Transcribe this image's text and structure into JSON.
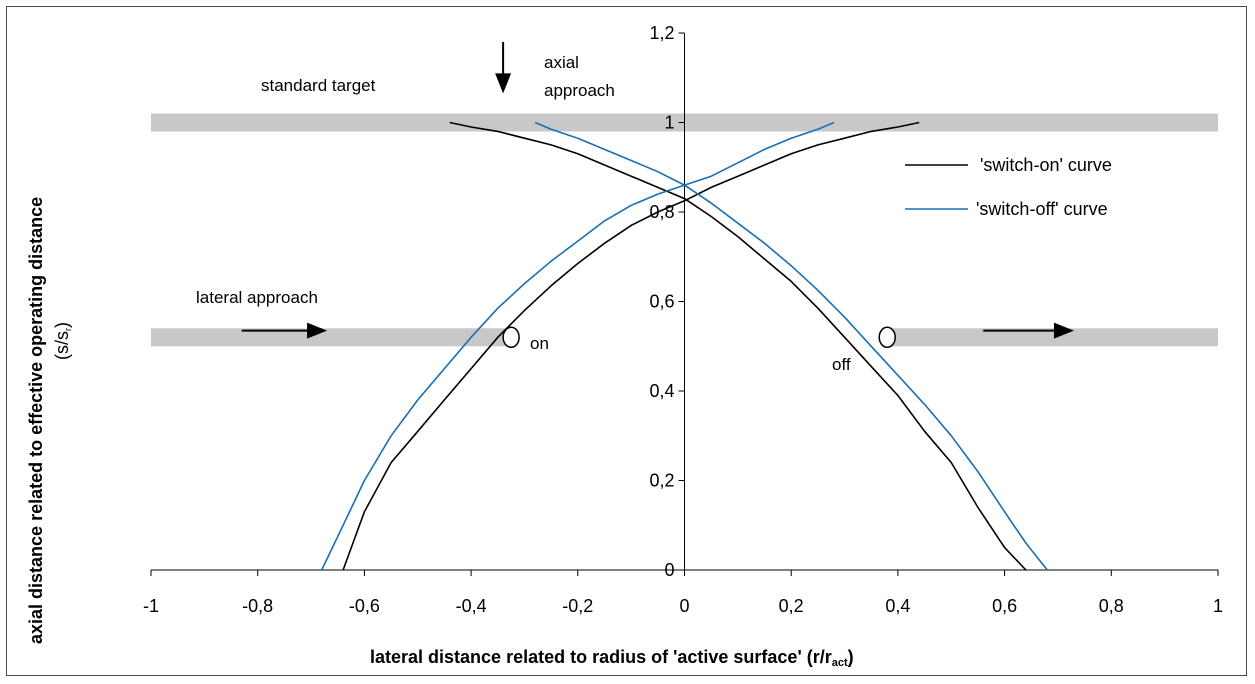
{
  "chart_data": {
    "type": "line",
    "xlabel_main": "lateral distance related to radius of 'active surface' (r/r",
    "xlabel_sub": "act",
    "xlabel_end": ")",
    "ylabel": "axial distance related to effective operating distance",
    "ylabel_units": "(s/s",
    "ylabel_units_sub": "r",
    "ylabel_units_end": ")",
    "xlim": [
      -1,
      1
    ],
    "ylim": [
      0,
      1.2
    ],
    "x_ticks": [
      -1,
      -0.8,
      -0.6,
      -0.4,
      -0.2,
      0,
      0.2,
      0.4,
      0.6,
      0.8,
      1
    ],
    "x_tick_labels": [
      "-1",
      "-0,8",
      "-0,6",
      "-0,4",
      "-0,2",
      "0",
      "0,2",
      "0,4",
      "0,6",
      "0,8",
      "1"
    ],
    "y_ticks": [
      0,
      0.2,
      0.4,
      0.6,
      0.8,
      1.0,
      1.2
    ],
    "y_tick_labels": [
      "0",
      "0,2",
      "0,4",
      "0,6",
      "0,8",
      "1",
      "1,2"
    ],
    "legend_position": "right",
    "series": [
      {
        "name": "'switch-on' curve",
        "color": "#000000",
        "segments": [
          {
            "x": [
              -0.64,
              -0.6,
              -0.55,
              -0.5,
              -0.45,
              -0.4,
              -0.35,
              -0.3,
              -0.25,
              -0.2,
              -0.15,
              -0.1,
              -0.05,
              0,
              0.05,
              0.1,
              0.15,
              0.2,
              0.25,
              0.3,
              0.35,
              0.4,
              0.44
            ],
            "y": [
              0,
              0.13,
              0.24,
              0.31,
              0.38,
              0.45,
              0.52,
              0.58,
              0.635,
              0.685,
              0.73,
              0.77,
              0.8,
              0.825,
              0.855,
              0.88,
              0.905,
              0.93,
              0.95,
              0.965,
              0.98,
              0.99,
              1.0
            ]
          },
          {
            "x": [
              -0.44,
              -0.4,
              -0.35,
              -0.3,
              -0.25,
              -0.2,
              -0.15,
              -0.1,
              -0.05,
              0,
              0.05,
              0.1,
              0.15,
              0.2,
              0.25,
              0.3,
              0.35,
              0.4,
              0.45,
              0.5,
              0.55,
              0.6,
              0.64
            ],
            "y": [
              1.0,
              0.99,
              0.98,
              0.965,
              0.95,
              0.93,
              0.905,
              0.88,
              0.855,
              0.83,
              0.79,
              0.745,
              0.695,
              0.645,
              0.585,
              0.52,
              0.455,
              0.39,
              0.31,
              0.24,
              0.14,
              0.05,
              0
            ]
          }
        ]
      },
      {
        "name": "'switch-off' curve",
        "color": "#1a6eb4",
        "segments": [
          {
            "x": [
              -0.68,
              -0.64,
              -0.6,
              -0.55,
              -0.5,
              -0.45,
              -0.4,
              -0.35,
              -0.3,
              -0.25,
              -0.2,
              -0.15,
              -0.1,
              -0.05,
              0,
              0.05,
              0.1,
              0.15,
              0.2,
              0.25,
              0.28
            ],
            "y": [
              0,
              0.1,
              0.2,
              0.3,
              0.38,
              0.45,
              0.52,
              0.585,
              0.64,
              0.69,
              0.735,
              0.78,
              0.815,
              0.84,
              0.86,
              0.88,
              0.91,
              0.94,
              0.965,
              0.985,
              1.0
            ]
          },
          {
            "x": [
              -0.28,
              -0.25,
              -0.2,
              -0.15,
              -0.1,
              -0.05,
              0,
              0.05,
              0.1,
              0.15,
              0.2,
              0.25,
              0.3,
              0.35,
              0.4,
              0.45,
              0.5,
              0.55,
              0.6,
              0.64,
              0.68
            ],
            "y": [
              1.0,
              0.985,
              0.965,
              0.94,
              0.915,
              0.89,
              0.86,
              0.82,
              0.775,
              0.73,
              0.68,
              0.625,
              0.565,
              0.5,
              0.435,
              0.37,
              0.3,
              0.22,
              0.13,
              0.06,
              0
            ]
          }
        ]
      }
    ],
    "bands": [
      {
        "x0": -1.0,
        "x1": 1.0,
        "y_center": 1.0
      },
      {
        "x0": -1.0,
        "x1": -0.33,
        "y_center": 0.52
      },
      {
        "x0": 0.38,
        "x1": 1.0,
        "y_center": 0.52
      }
    ],
    "arrows": [
      {
        "x0": -0.83,
        "x1": -0.67,
        "y": 0.535,
        "direction": "right"
      },
      {
        "x0": 0.56,
        "x1": 0.73,
        "y": 0.535,
        "direction": "right"
      },
      {
        "x": -0.34,
        "y0": 1.18,
        "y1": 1.065,
        "direction": "down"
      }
    ],
    "markers": [
      {
        "x": -0.325,
        "y": 0.52,
        "label": "on"
      },
      {
        "x": 0.38,
        "y": 0.52,
        "label": "off"
      }
    ],
    "annotations": {
      "standard_target": "standard target",
      "axial_line1": "axial",
      "axial_line2": "approach",
      "lateral_approach": "lateral approach",
      "on": "on",
      "off": "off"
    }
  }
}
